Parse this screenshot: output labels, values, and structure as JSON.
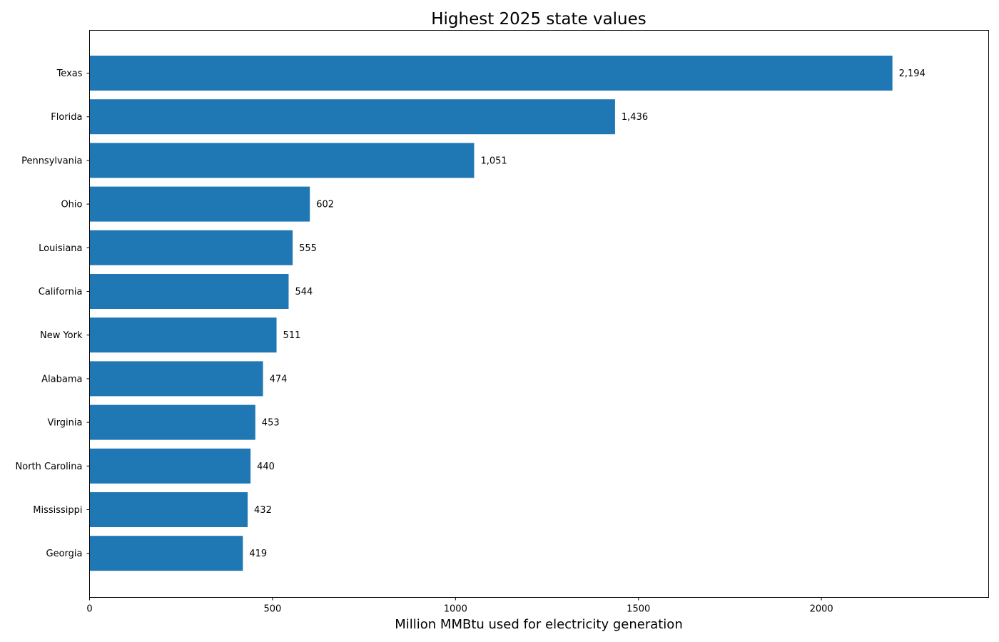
{
  "chart_data": {
    "type": "bar",
    "orientation": "horizontal",
    "title": "Highest 2025 state values",
    "xlabel": "Million MMBtu used for electricity generation",
    "ylabel": "",
    "categories": [
      "Texas",
      "Florida",
      "Pennsylvania",
      "Ohio",
      "Louisiana",
      "California",
      "New York",
      "Alabama",
      "Virginia",
      "North Carolina",
      "Mississippi",
      "Georgia"
    ],
    "values": [
      2194,
      1436,
      1051,
      602,
      555,
      544,
      511,
      474,
      453,
      440,
      432,
      419
    ],
    "value_labels": [
      "2,194",
      "1,436",
      "1,051",
      "602",
      "555",
      "544",
      "511",
      "474",
      "453",
      "440",
      "432",
      "419"
    ],
    "xlim": [
      0,
      2457
    ],
    "xticks": [
      0,
      500,
      1000,
      1500,
      2000
    ],
    "xtick_labels": [
      "0",
      "500",
      "1000",
      "1500",
      "2000"
    ],
    "grid": false,
    "legend": "none",
    "bar_color": "#1f77b4"
  }
}
